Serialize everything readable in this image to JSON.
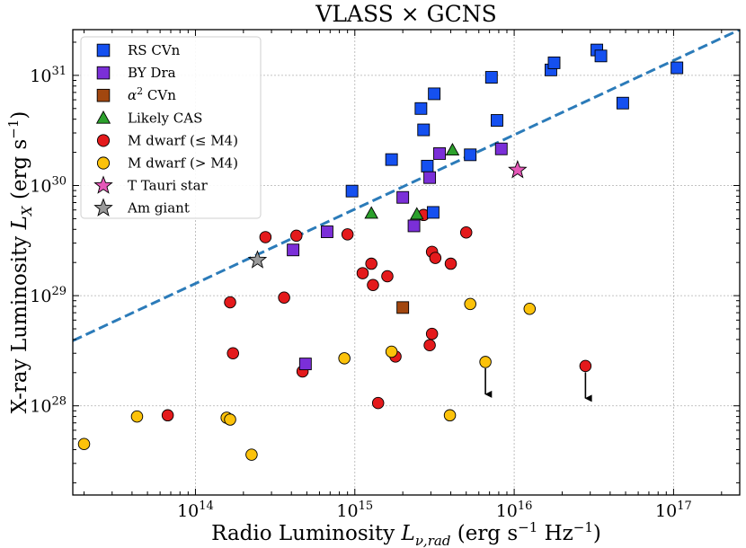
{
  "chart_data": {
    "type": "scatter",
    "title": "VLASS × GCNS",
    "xlabel": "Radio Luminosity L_{ν,rad} (erg s^{-1} Hz^{-1})",
    "ylabel": "X-ray Luminosity L_X (erg s^{-1})",
    "x_scale": "log",
    "y_scale": "log",
    "xlim": [
      17000000000000.0,
      2.6e+17
    ],
    "ylim": [
      1.55e+27,
      2.6e+31
    ],
    "x_ticks": [
      {
        "value": 100000000000000.0,
        "base": "10",
        "exp": "14"
      },
      {
        "value": 1000000000000000.0,
        "base": "10",
        "exp": "15"
      },
      {
        "value": 1e+16,
        "base": "10",
        "exp": "16"
      },
      {
        "value": 1e+17,
        "base": "10",
        "exp": "17"
      }
    ],
    "y_ticks": [
      {
        "value": 1e+28,
        "base": "10",
        "exp": "28"
      },
      {
        "value": 1e+29,
        "base": "10",
        "exp": "29"
      },
      {
        "value": 1e+30,
        "base": "10",
        "exp": "30"
      },
      {
        "value": 1e+31,
        "base": "10",
        "exp": "31"
      }
    ],
    "grid": true,
    "legend_position": "top-left",
    "reference_line": {
      "x": [
        17000000000000.0,
        2.6e+17
      ],
      "y": [
        3.9e+28,
        2.6e+31
      ],
      "color": "#2b7bb9",
      "style": "dashed"
    },
    "series": [
      {
        "name": "RS CVn",
        "marker": "square",
        "color": "#1550f0",
        "points": [
          [
            960000000000000.0,
            8.9e+29
          ],
          [
            1700000000000000.0,
            1.72e+30
          ],
          [
            2600000000000000.0,
            5e+30
          ],
          [
            2700000000000000.0,
            3.2e+30
          ],
          [
            2850000000000000.0,
            1.5e+30
          ],
          [
            3100000000000000.0,
            5.7e+29
          ],
          [
            3150000000000000.0,
            6.8e+30
          ],
          [
            5300000000000000.0,
            1.9e+30
          ],
          [
            7200000000000000.0,
            9.6e+30
          ],
          [
            7800000000000000.0,
            3.9e+30
          ],
          [
            1.7e+16,
            1.12e+31
          ],
          [
            1.78e+16,
            1.3e+31
          ],
          [
            3.3e+16,
            1.7e+31
          ],
          [
            3.5e+16,
            1.5e+31
          ],
          [
            4.8e+16,
            5.6e+30
          ],
          [
            1.05e+17,
            1.17e+31
          ]
        ]
      },
      {
        "name": "BY Dra",
        "marker": "square",
        "color": "#7b2fd8",
        "points": [
          [
            490000000000000.0,
            2.4e+28
          ],
          [
            410000000000000.0,
            2.6e+29
          ],
          [
            670000000000000.0,
            3.8e+29
          ],
          [
            2000000000000000.0,
            7.8e+29
          ],
          [
            2350000000000000.0,
            4.3e+29
          ],
          [
            2950000000000000.0,
            1.18e+30
          ],
          [
            3400000000000000.0,
            1.95e+30
          ],
          [
            8300000000000000.0,
            2.15e+30
          ]
        ]
      },
      {
        "name": "α² CVn",
        "marker": "square",
        "color": "#a2470f",
        "points": [
          [
            2000000000000000.0,
            7.8e+28
          ]
        ]
      },
      {
        "name": "Likely CAS",
        "marker": "triangle",
        "color": "#2ca02c",
        "points": [
          [
            1270000000000000.0,
            5.6e+29
          ],
          [
            2450000000000000.0,
            5.5e+29
          ],
          [
            4100000000000000.0,
            2.1e+30
          ]
        ]
      },
      {
        "name": "M dwarf (≤ M4)",
        "marker": "circle",
        "color": "#e41a1c",
        "points": [
          [
            67000000000000.0,
            8.2e+27
          ],
          [
            165000000000000.0,
            8.7e+28
          ],
          [
            172000000000000.0,
            3e+28
          ],
          [
            275000000000000.0,
            3.4e+29
          ],
          [
            360000000000000.0,
            9.6e+28
          ],
          [
            430000000000000.0,
            3.5e+29
          ],
          [
            470000000000000.0,
            2.05e+28
          ],
          [
            900000000000000.0,
            3.6e+29
          ],
          [
            1120000000000000.0,
            1.6e+29
          ],
          [
            1270000000000000.0,
            1.95e+29
          ],
          [
            1300000000000000.0,
            1.25e+29
          ],
          [
            1400000000000000.0,
            1.06e+28
          ],
          [
            1600000000000000.0,
            1.5e+29
          ],
          [
            1800000000000000.0,
            2.8e+28
          ],
          [
            2700000000000000.0,
            5.4e+29
          ],
          [
            2950000000000000.0,
            3.55e+28
          ],
          [
            3050000000000000.0,
            4.5e+28
          ],
          [
            3050000000000000.0,
            2.5e+29
          ],
          [
            3200000000000000.0,
            2.2e+29
          ],
          [
            4000000000000000.0,
            1.95e+29
          ],
          [
            5000000000000000.0,
            3.75e+29
          ],
          [
            2.8e+16,
            2.3e+28
          ]
        ]
      },
      {
        "name": "M dwarf (> M4)",
        "marker": "circle",
        "color": "#fcc20a",
        "points": [
          [
            20000000000000.0,
            4.5e+27
          ],
          [
            43000000000000.0,
            8e+27
          ],
          [
            157000000000000.0,
            7.8e+27
          ],
          [
            165000000000000.0,
            7.5e+27
          ],
          [
            225000000000000.0,
            3.6e+27
          ],
          [
            860000000000000.0,
            2.7e+28
          ],
          [
            1700000000000000.0,
            3.1e+28
          ],
          [
            3950000000000000.0,
            8.2e+27
          ],
          [
            5300000000000000.0,
            8.4e+28
          ],
          [
            6600000000000000.0,
            2.5e+28
          ],
          [
            1.25e+16,
            7.6e+28
          ]
        ]
      },
      {
        "name": "T Tauri star",
        "marker": "star",
        "color": "#e557b8",
        "points": [
          [
            1.05e+16,
            1.38e+30
          ]
        ]
      },
      {
        "name": "Am giant",
        "marker": "star",
        "color": "#9a9a9a",
        "points": [
          [
            245000000000000.0,
            2.1e+29
          ]
        ]
      }
    ],
    "upper_limits": [
      [
        6600000000000000.0,
        2.5e+28
      ],
      [
        2.8e+16,
        2.3e+28
      ]
    ]
  }
}
